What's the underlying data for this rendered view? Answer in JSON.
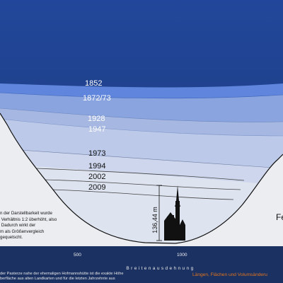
{
  "years": {
    "y1852": "1852",
    "y1872": "1872/73",
    "y1928": "1928",
    "y1947": "1947",
    "y1973": "1973",
    "y1994": "1994",
    "y2002": "2002",
    "y2009": "2009"
  },
  "height_label": "136,44 m",
  "note_text": "n der Darstellbarkeit wurde\n Verhältnis 1:2 überhöht, also\n Dadurch wirkt der\nm als Größenvergleich\ngequetscht.",
  "axis": {
    "tick_500": "500",
    "tick_1000": "1000",
    "title": "Breitenausdehnung"
  },
  "right_label": "Fe",
  "footer": {
    "left": "der Pasterze nahe der ehemaligen Hofmannshütte ist die exakte Höhe\nberfläche aus alten Landkarten und für die letzten Jahrzehnte aus",
    "right": "Längen, Flächen und Volumsänderu"
  },
  "colors": {
    "background": "#1e3f86",
    "ice_light": "#dde3ef",
    "accent_orange": "#e2751d"
  }
}
